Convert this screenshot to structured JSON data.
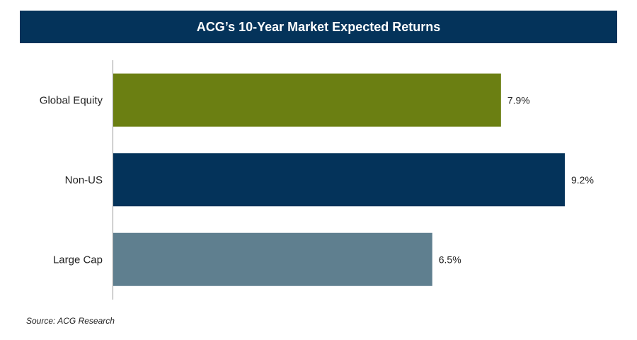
{
  "title": "ACG’s 10-Year Market Expected Returns",
  "source": "Source: ACG Research",
  "chart_data": {
    "type": "bar",
    "orientation": "horizontal",
    "categories": [
      "Global Equity",
      "Non-US",
      "Large Cap"
    ],
    "values": [
      7.9,
      9.2,
      6.5
    ],
    "value_labels": [
      "7.9%",
      "9.2%",
      "6.5%"
    ],
    "colors": [
      "#6b7f12",
      "#04335a",
      "#5f7f8f"
    ],
    "xlim": [
      0,
      9.2
    ],
    "grid": false,
    "title": "ACG’s 10-Year Market Expected Returns"
  }
}
